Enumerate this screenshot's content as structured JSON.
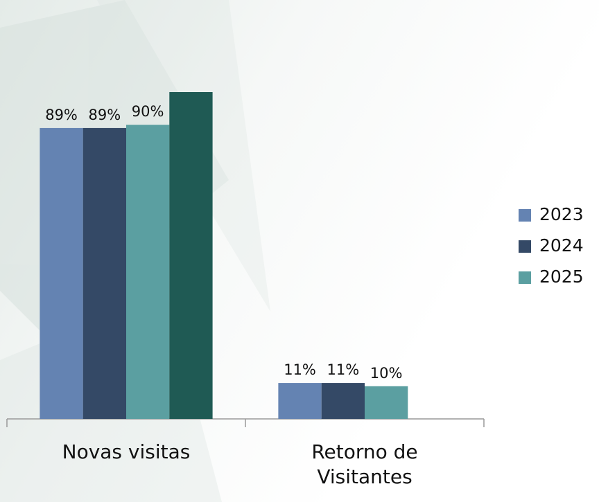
{
  "chart_data": {
    "type": "bar",
    "categories": [
      "Novas visitas",
      "Retorno de Visitantes"
    ],
    "series": [
      {
        "name": "2023",
        "color": "#6483b2",
        "values": [
          89,
          11
        ],
        "value_labels": [
          "89%",
          "11%"
        ]
      },
      {
        "name": "2024",
        "color": "#344966",
        "values": [
          89,
          11
        ],
        "value_labels": [
          "89%",
          "11%"
        ]
      },
      {
        "name": "2025",
        "color": "#5b9fa1",
        "values": [
          90,
          10
        ],
        "value_labels": [
          "90%",
          "10%"
        ]
      },
      {
        "color": "#1f5a54",
        "values": [
          100,
          null
        ]
      }
    ],
    "legend": "right"
  }
}
